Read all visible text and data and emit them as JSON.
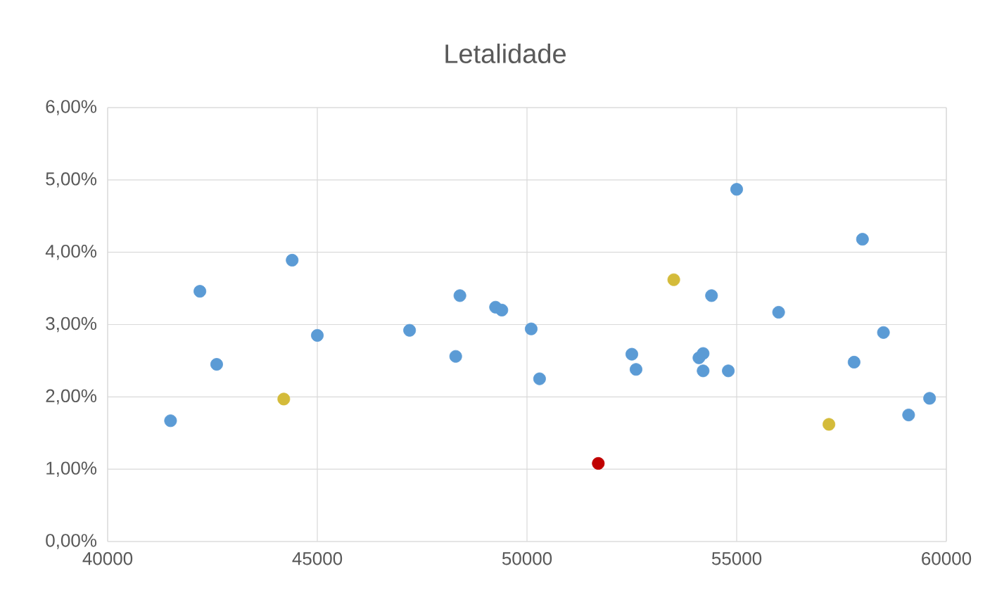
{
  "chart_data": {
    "type": "scatter",
    "title": "Letalidade",
    "grid": true,
    "marker": "circle",
    "xlim": [
      40000,
      60000
    ],
    "xticks": [
      40000,
      45000,
      50000,
      55000,
      60000
    ],
    "ylim": [
      0,
      0.06
    ],
    "yticks": [
      {
        "value": 0,
        "label": "0,00%"
      },
      {
        "value": 0.01,
        "label": "1,00%"
      },
      {
        "value": 0.02,
        "label": "2,00%"
      },
      {
        "value": 0.03,
        "label": "3,00%"
      },
      {
        "value": 0.04,
        "label": "4,00%"
      },
      {
        "value": 0.05,
        "label": "5,00%"
      },
      {
        "value": 0.06,
        "label": "6,00%"
      }
    ],
    "series": [
      {
        "color": "#5b9bd5",
        "x": [
          41500,
          42200,
          42600,
          44400,
          45000,
          47200,
          48300,
          48400,
          49250,
          49400,
          50100,
          50300,
          52500,
          52600,
          54100,
          54200,
          54200,
          54400,
          54800,
          55000,
          56000,
          57800,
          58000,
          58500,
          59100,
          59600
        ],
        "values": [
          0.0167,
          0.0346,
          0.0245,
          0.0389,
          0.0285,
          0.0292,
          0.0256,
          0.034,
          0.0324,
          0.032,
          0.0294,
          0.0225,
          0.0259,
          0.0238,
          0.0254,
          0.026,
          0.0236,
          0.034,
          0.0236,
          0.0487,
          0.0317,
          0.0248,
          0.0418,
          0.0289,
          0.0175,
          0.0198
        ]
      },
      {
        "color": "#d4bb3a",
        "x": [
          44200,
          53500,
          57200
        ],
        "values": [
          0.0197,
          0.0362,
          0.0162
        ]
      },
      {
        "color": "#c00000",
        "x": [
          51700
        ],
        "values": [
          0.0108
        ]
      }
    ]
  }
}
